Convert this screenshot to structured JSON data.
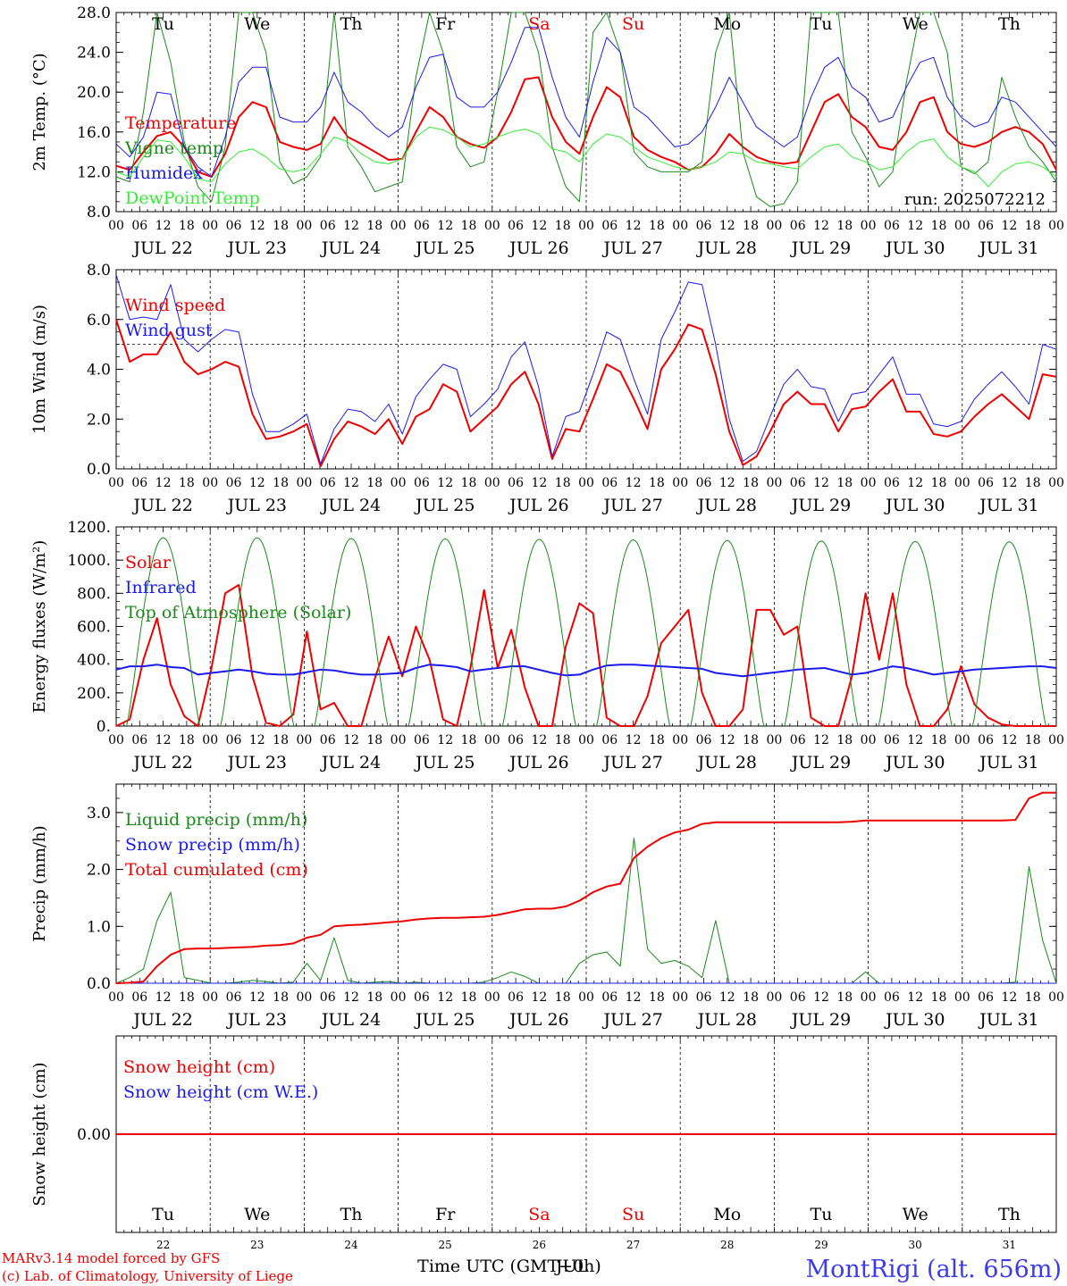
{
  "colors": {
    "red": "#ee0000",
    "green": "#1a8a1a",
    "lightgreen": "#33ee33",
    "blue": "#1a1aee",
    "black": "#000000",
    "sitename": "#3a3aee"
  },
  "days": {
    "abbr": [
      "Tu",
      "We",
      "Th",
      "Fr",
      "Sa",
      "Su",
      "Mo",
      "Tu",
      "We",
      "Th"
    ],
    "weekend": [
      false,
      false,
      false,
      false,
      true,
      true,
      false,
      false,
      false,
      false
    ],
    "dates": [
      "JUL 22",
      "JUL 23",
      "JUL 24",
      "JUL 25",
      "JUL 26",
      "JUL 27",
      "JUL 28",
      "JUL 29",
      "JUL 30",
      "JUL 31"
    ],
    "daynum": [
      "22",
      "23",
      "24",
      "25",
      "26",
      "27",
      "28",
      "29",
      "30",
      "31"
    ],
    "hour_ticks": [
      "00",
      "06",
      "12",
      "18"
    ],
    "final_tick": "00"
  },
  "footer": {
    "model": "MARv3.14 model forced by GFS",
    "lab": "(c) Lab. of Climatology, University of Liege",
    "xlabel": "Time UTC (GMT+0h)",
    "xlabel_overlap": "JUL",
    "site": "MontRigi (alt. 656m)"
  },
  "chart_data": [
    {
      "type": "line",
      "ylabel": "2m Temp. (°C)",
      "ylim": [
        8,
        28
      ],
      "ytick_labels": [
        "8.0",
        "12.0",
        "16.0",
        "20.0",
        "24.0",
        "28.0"
      ],
      "ytick_values": [
        8,
        12,
        16,
        20,
        24,
        28
      ],
      "annotation": "run: 2025072212",
      "series": [
        {
          "name": "Temperature",
          "color": "red",
          "width": 2,
          "y": [
            12.6,
            12.2,
            14.0,
            15.6,
            16.0,
            14.5,
            12.0,
            11.5,
            13.8,
            17.5,
            19.0,
            18.5,
            15.0,
            14.5,
            14.2,
            14.8,
            17.5,
            15.5,
            14.8,
            14.0,
            13.2,
            13.3,
            16.0,
            18.5,
            17.5,
            15.5,
            14.8,
            14.4,
            15.5,
            18.0,
            21.3,
            21.5,
            17.5,
            15.0,
            13.8,
            17.5,
            20.5,
            19.5,
            15.5,
            14.2,
            13.5,
            13.0,
            12.2,
            12.5,
            13.8,
            15.8,
            14.5,
            13.5,
            13.0,
            12.8,
            13.0,
            16.0,
            19.0,
            19.8,
            17.5,
            16.5,
            14.5,
            14.2,
            16.0,
            19.0,
            19.5,
            16.0,
            14.8,
            14.5,
            15.0,
            16.0,
            16.5,
            16.0,
            14.8,
            12.2
          ]
        },
        {
          "name": "Vigne temp",
          "color": "green",
          "width": 1,
          "y": [
            11.5,
            11.0,
            18.0,
            28.0,
            23.0,
            15.0,
            10.5,
            9.0,
            14.5,
            28.0,
            28.0,
            24.0,
            13.0,
            10.8,
            11.5,
            13.5,
            28.0,
            14.5,
            12.5,
            10.0,
            10.5,
            11.0,
            21.5,
            28.0,
            24.0,
            14.5,
            12.5,
            13.0,
            20.0,
            28.0,
            28.0,
            24.0,
            14.5,
            10.5,
            9.0,
            26.0,
            28.0,
            24.0,
            14.0,
            12.5,
            12.0,
            12.0,
            12.0,
            13.0,
            24.0,
            28.0,
            14.0,
            9.5,
            8.5,
            8.8,
            11.0,
            28.0,
            28.0,
            28.0,
            16.0,
            13.5,
            10.5,
            12.0,
            21.0,
            28.0,
            28.0,
            24.0,
            12.5,
            11.8,
            13.0,
            21.5,
            17.5,
            14.5,
            13.0,
            11.0
          ]
        },
        {
          "name": "Humidex",
          "color": "blue",
          "width": 1,
          "y": [
            14.8,
            13.5,
            15.5,
            20.0,
            19.8,
            14.5,
            12.5,
            11.5,
            15.5,
            21.0,
            22.5,
            22.5,
            17.5,
            17.0,
            17.0,
            18.5,
            22.0,
            19.0,
            18.0,
            16.5,
            15.5,
            16.5,
            20.5,
            23.5,
            23.8,
            19.5,
            18.5,
            18.5,
            20.0,
            23.0,
            26.5,
            26.5,
            21.5,
            17.5,
            15.5,
            21.0,
            25.5,
            24.0,
            18.5,
            17.5,
            16.0,
            14.5,
            14.8,
            16.0,
            18.5,
            21.5,
            19.0,
            16.5,
            15.5,
            14.5,
            15.5,
            19.5,
            22.5,
            23.5,
            20.5,
            19.5,
            17.0,
            17.5,
            20.5,
            23.0,
            23.5,
            19.5,
            17.5,
            16.5,
            17.0,
            19.5,
            19.0,
            17.5,
            16.0,
            14.5
          ]
        },
        {
          "name": "DewPoint Temp",
          "color": "lightgreen",
          "width": 1,
          "y": [
            12.0,
            11.5,
            13.5,
            15.2,
            15.0,
            13.5,
            11.3,
            11.0,
            12.8,
            14.0,
            14.3,
            13.5,
            12.3,
            12.0,
            12.3,
            13.8,
            15.5,
            15.0,
            13.8,
            13.0,
            12.8,
            13.3,
            15.5,
            16.5,
            16.2,
            15.5,
            14.5,
            14.8,
            15.5,
            16.0,
            16.3,
            15.8,
            14.3,
            14.0,
            13.0,
            14.8,
            15.8,
            15.5,
            14.5,
            13.5,
            13.0,
            12.5,
            12.2,
            12.5,
            13.0,
            14.0,
            13.8,
            13.0,
            12.8,
            12.5,
            12.3,
            13.5,
            14.5,
            14.8,
            13.5,
            13.0,
            12.2,
            12.5,
            14.0,
            15.0,
            15.3,
            13.5,
            12.5,
            12.0,
            10.5,
            12.0,
            12.8,
            13.0,
            12.5,
            11.5
          ]
        }
      ]
    },
    {
      "type": "line",
      "ylabel": "10m Wind (m/s)",
      "ylim": [
        0,
        8
      ],
      "ytick_labels": [
        "0.0",
        "2.0",
        "4.0",
        "6.0",
        "8.0"
      ],
      "ytick_values": [
        0,
        2,
        4,
        6,
        8
      ],
      "hline": 5,
      "series": [
        {
          "name": "Wind speed",
          "color": "red",
          "width": 2,
          "y": [
            6.0,
            4.3,
            4.6,
            4.6,
            5.5,
            4.3,
            3.8,
            4.0,
            4.3,
            4.1,
            2.2,
            1.2,
            1.3,
            1.5,
            1.8,
            0.1,
            1.2,
            1.9,
            1.7,
            1.4,
            2.0,
            1.0,
            2.1,
            2.4,
            3.4,
            3.1,
            1.5,
            2.0,
            2.5,
            3.4,
            3.9,
            2.6,
            0.4,
            1.6,
            1.5,
            2.8,
            4.2,
            3.9,
            2.8,
            1.6,
            4.0,
            4.8,
            5.8,
            5.6,
            3.8,
            1.5,
            0.15,
            0.5,
            1.5,
            2.6,
            3.1,
            2.6,
            2.6,
            1.5,
            2.4,
            2.5,
            3.1,
            3.6,
            2.3,
            2.3,
            1.4,
            1.3,
            1.5,
            2.1,
            2.6,
            3.0,
            2.5,
            2.0,
            3.8,
            3.7
          ]
        },
        {
          "name": "Wind gust",
          "color": "blue",
          "width": 1,
          "y": [
            7.8,
            6.0,
            6.1,
            6.0,
            7.4,
            5.2,
            4.7,
            5.2,
            5.6,
            5.5,
            3.0,
            1.5,
            1.5,
            1.8,
            2.2,
            0.2,
            1.6,
            2.4,
            2.3,
            1.9,
            2.6,
            1.4,
            2.9,
            3.6,
            4.2,
            4.0,
            2.1,
            2.6,
            3.2,
            4.5,
            5.1,
            3.3,
            0.5,
            2.1,
            2.3,
            3.8,
            5.5,
            5.2,
            3.6,
            2.2,
            5.2,
            6.3,
            7.5,
            7.4,
            5.0,
            2.0,
            0.3,
            0.7,
            2.1,
            3.4,
            4.0,
            3.3,
            3.2,
            1.9,
            3.0,
            3.1,
            3.8,
            4.5,
            3.0,
            3.0,
            1.8,
            1.7,
            1.9,
            2.8,
            3.4,
            3.9,
            3.3,
            2.6,
            5.0,
            4.8
          ]
        }
      ]
    },
    {
      "type": "line",
      "ylabel": "Energy fluxes (W/m²)",
      "ylim": [
        0,
        1200
      ],
      "ytick_labels": [
        "0.",
        "200.",
        "400.",
        "600.",
        "800.",
        "1000.",
        "1200."
      ],
      "ytick_values": [
        0,
        200,
        400,
        600,
        800,
        1000,
        1200
      ],
      "series": [
        {
          "name": "Solar",
          "color": "red",
          "width": 2,
          "y": [
            0,
            40,
            400,
            650,
            250,
            60,
            0,
            350,
            800,
            850,
            300,
            20,
            0,
            70,
            570,
            100,
            140,
            0,
            0,
            290,
            540,
            300,
            600,
            400,
            40,
            0,
            350,
            820,
            350,
            580,
            230,
            0,
            0,
            480,
            740,
            680,
            50,
            0,
            0,
            180,
            500,
            600,
            700,
            200,
            0,
            0,
            100,
            700,
            700,
            550,
            600,
            50,
            0,
            0,
            300,
            800,
            400,
            800,
            250,
            0,
            0,
            100,
            360,
            130,
            50,
            10,
            0,
            0,
            0,
            0
          ]
        },
        {
          "name": "Infrared",
          "color": "blue",
          "width": 2,
          "y": [
            340,
            360,
            360,
            370,
            355,
            350,
            310,
            320,
            330,
            340,
            330,
            315,
            310,
            310,
            325,
            340,
            335,
            320,
            310,
            310,
            315,
            320,
            350,
            370,
            365,
            355,
            330,
            340,
            350,
            360,
            360,
            340,
            320,
            305,
            310,
            340,
            365,
            370,
            370,
            365,
            360,
            355,
            350,
            345,
            320,
            310,
            300,
            310,
            320,
            330,
            340,
            345,
            350,
            330,
            310,
            320,
            340,
            360,
            350,
            330,
            310,
            320,
            330,
            340,
            345,
            350,
            355,
            360,
            360,
            350
          ]
        },
        {
          "name": "Top of Atmosphere (Solar)",
          "color": "green",
          "width": 1,
          "peaks": [
            1135,
            1135,
            1130,
            1128,
            1125,
            1122,
            1118,
            1115,
            1112,
            1110
          ]
        }
      ]
    },
    {
      "type": "line",
      "ylabel": "Precip (mm/h)",
      "ylim": [
        0,
        3.5
      ],
      "ytick_labels": [
        "0.0",
        "1.0",
        "2.0",
        "3.0"
      ],
      "ytick_values": [
        0,
        1,
        2,
        3
      ],
      "series": [
        {
          "name": "Liquid precip (mm/h)",
          "color": "green",
          "width": 1,
          "y": [
            0,
            0.1,
            0.25,
            1.1,
            1.6,
            0.1,
            0.05,
            0,
            0,
            0.02,
            0.05,
            0.03,
            0,
            0.02,
            0.35,
            0.05,
            0.8,
            0.05,
            0,
            0.02,
            0.03,
            0,
            0.02,
            0,
            0,
            0,
            0,
            0.02,
            0.1,
            0.2,
            0.12,
            0,
            0,
            0,
            0.35,
            0.5,
            0.55,
            0.3,
            2.55,
            0.6,
            0.35,
            0.4,
            0.3,
            0.1,
            1.1,
            0,
            0,
            0,
            0,
            0,
            0,
            0,
            0,
            0,
            0,
            0.2,
            0,
            0,
            0,
            0,
            0,
            0,
            0,
            0,
            0,
            0,
            0.02,
            2.05,
            0.75,
            0
          ]
        },
        {
          "name": "Snow precip (mm/h)",
          "color": "blue",
          "width": 1,
          "y": [
            0,
            0,
            0,
            0,
            0,
            0,
            0,
            0,
            0,
            0,
            0,
            0,
            0,
            0,
            0,
            0,
            0,
            0,
            0,
            0,
            0,
            0,
            0,
            0,
            0,
            0,
            0,
            0,
            0,
            0,
            0,
            0,
            0,
            0,
            0,
            0,
            0,
            0,
            0,
            0,
            0,
            0,
            0,
            0,
            0,
            0,
            0,
            0,
            0,
            0,
            0,
            0,
            0,
            0,
            0,
            0,
            0,
            0,
            0,
            0,
            0,
            0,
            0,
            0,
            0,
            0,
            0,
            0,
            0,
            0
          ]
        },
        {
          "name": "Total cumulated (cm)",
          "color": "red",
          "width": 2,
          "y": [
            0,
            0.01,
            0.03,
            0.3,
            0.5,
            0.6,
            0.61,
            0.61,
            0.62,
            0.63,
            0.64,
            0.66,
            0.67,
            0.7,
            0.8,
            0.85,
            1.0,
            1.02,
            1.03,
            1.05,
            1.07,
            1.09,
            1.12,
            1.14,
            1.15,
            1.15,
            1.16,
            1.17,
            1.2,
            1.25,
            1.3,
            1.31,
            1.31,
            1.35,
            1.45,
            1.6,
            1.7,
            1.75,
            2.2,
            2.4,
            2.55,
            2.65,
            2.7,
            2.8,
            2.83,
            2.83,
            2.83,
            2.83,
            2.83,
            2.83,
            2.83,
            2.83,
            2.83,
            2.83,
            2.84,
            2.86,
            2.86,
            2.86,
            2.86,
            2.86,
            2.86,
            2.86,
            2.86,
            2.86,
            2.86,
            2.86,
            2.87,
            3.25,
            3.35,
            3.35
          ]
        }
      ]
    },
    {
      "type": "line",
      "ylabel": "Snow height (cm)",
      "ytick_labels": [
        "0.00"
      ],
      "ytick_values": [
        0
      ],
      "series": [
        {
          "name": "Snow height (cm)",
          "color": "red",
          "width": 2,
          "y": [
            0,
            0
          ]
        },
        {
          "name": "Snow height (cm W.E.)",
          "color": "blue",
          "width": 1,
          "y": [
            0,
            0
          ]
        }
      ]
    }
  ]
}
